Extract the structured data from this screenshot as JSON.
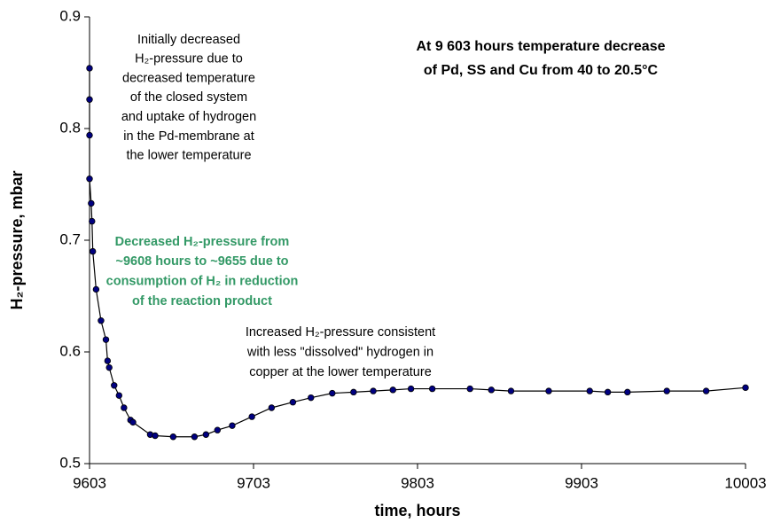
{
  "chart_data": {
    "type": "line",
    "xlabel": "time, hours",
    "ylabel": "H₂-pressure, mbar",
    "xlim": [
      9603,
      10003
    ],
    "ylim": [
      0.5,
      0.9
    ],
    "xticks": [
      9603,
      9703,
      9803,
      9903,
      10003
    ],
    "yticks": [
      0.5,
      0.6,
      0.7,
      0.8,
      0.9
    ],
    "grid": false,
    "series": [
      {
        "color": "#000080",
        "x": [
          9603,
          9603,
          9603,
          9603,
          9604,
          9604.5,
          9605,
          9607,
          9610,
          9613,
          9614,
          9615,
          9618,
          9621,
          9624,
          9628,
          9629.5,
          9640,
          9643,
          9654,
          9667,
          9674,
          9681,
          9690,
          9702,
          9714,
          9727,
          9738,
          9751,
          9764,
          9776,
          9788,
          9799,
          9812,
          9835,
          9848,
          9860,
          9883,
          9908,
          9919,
          9931,
          9955,
          9979,
          10003
        ],
        "values": [
          0.854,
          0.826,
          0.794,
          0.755,
          0.733,
          0.717,
          0.69,
          0.656,
          0.628,
          0.611,
          0.592,
          0.586,
          0.57,
          0.561,
          0.55,
          0.539,
          0.537,
          0.526,
          0.525,
          0.524,
          0.524,
          0.526,
          0.53,
          0.534,
          0.542,
          0.55,
          0.555,
          0.559,
          0.563,
          0.564,
          0.565,
          0.566,
          0.567,
          0.567,
          0.567,
          0.566,
          0.565,
          0.565,
          0.565,
          0.564,
          0.564,
          0.565,
          0.565,
          0.568
        ]
      }
    ],
    "annotations": [
      {
        "lines": [
          "Initially decreased",
          "H₂-pressure due to",
          "decreased temperature",
          "of  the closed system",
          "and uptake of  hydrogen",
          "in the Pd-membrane at",
          "the lower temperature"
        ],
        "color": "#000000",
        "bold": false
      },
      {
        "lines": [
          "At 9 603 hours temperature decrease",
          "of Pd, SS and Cu from 40 to 20.5°C"
        ],
        "color": "#000000",
        "bold": true
      },
      {
        "lines": [
          "Decreased H₂-pressure from",
          "~9608 hours to ~9655 due to",
          "consumption of H₂ in reduction",
          "of the reaction product"
        ],
        "color": "#339966",
        "bold": true
      },
      {
        "lines": [
          "Increased H₂-pressure consistent",
          "with less \"dissolved\" hydrogen in",
          "copper at the lower temperature"
        ],
        "color": "#000000",
        "bold": false
      }
    ]
  }
}
